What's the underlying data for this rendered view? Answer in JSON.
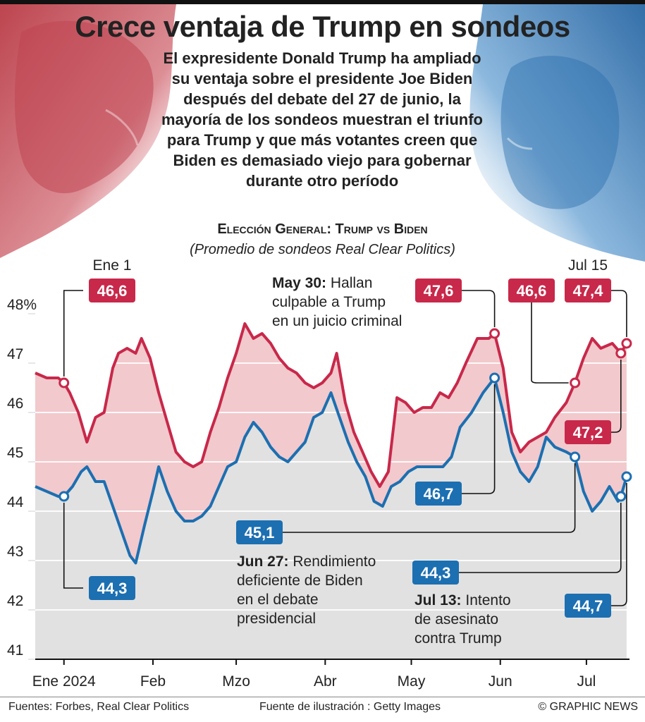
{
  "title": "Crece ventaja de Trump en sondeos",
  "intro": "El expresidente Donald Trump ha ampliado su ventaja sobre el presidente Joe Biden después del debate del 27 de junio, la mayoría de los sondeos muestran el triunfo para Trump y que más votantes creen que Biden es demasiado viejo para gobernar durante otro período",
  "subhead": "Elección General: Trump vs Biden",
  "subnote": "(Promedio de sondeos Real Clear Politics)",
  "colors": {
    "trump": "#c8284a",
    "biden": "#1c6fb1",
    "gap_fill": "#f2c9cc",
    "under_fill": "#e1e1e1"
  },
  "chart_data": {
    "type": "line",
    "ylim": [
      41,
      48
    ],
    "y_ticks": [
      {
        "value": 48,
        "label": "48%"
      },
      {
        "value": 47,
        "label": "47"
      },
      {
        "value": 46,
        "label": "46"
      },
      {
        "value": 45,
        "label": "45"
      },
      {
        "value": 44,
        "label": "44"
      },
      {
        "value": 43,
        "label": "43"
      },
      {
        "value": 42,
        "label": "42"
      },
      {
        "value": 41,
        "label": "41"
      }
    ],
    "x_range": [
      "2023-12-22",
      "2024-07-16"
    ],
    "x_ticks": [
      {
        "date": "2024-01-01",
        "label": "Ene 2024"
      },
      {
        "date": "2024-02-01",
        "label": "Feb"
      },
      {
        "date": "2024-03-01",
        "label": "Mzo"
      },
      {
        "date": "2024-04-01",
        "label": "Abr"
      },
      {
        "date": "2024-05-01",
        "label": "May"
      },
      {
        "date": "2024-06-01",
        "label": "Jun"
      },
      {
        "date": "2024-07-01",
        "label": "Jul"
      }
    ],
    "series": [
      {
        "key": "trump",
        "points": [
          [
            "2023-12-22",
            46.8
          ],
          [
            "2023-12-26",
            46.7
          ],
          [
            "2023-12-30",
            46.7
          ],
          [
            "2024-01-01",
            46.6
          ],
          [
            "2024-01-03",
            46.4
          ],
          [
            "2024-01-06",
            46.0
          ],
          [
            "2024-01-09",
            45.4
          ],
          [
            "2024-01-12",
            45.9
          ],
          [
            "2024-01-15",
            46.0
          ],
          [
            "2024-01-18",
            46.9
          ],
          [
            "2024-01-20",
            47.2
          ],
          [
            "2024-01-23",
            47.3
          ],
          [
            "2024-01-26",
            47.2
          ],
          [
            "2024-01-28",
            47.5
          ],
          [
            "2024-01-31",
            47.1
          ],
          [
            "2024-02-03",
            46.4
          ],
          [
            "2024-02-06",
            45.8
          ],
          [
            "2024-02-09",
            45.2
          ],
          [
            "2024-02-12",
            45.0
          ],
          [
            "2024-02-15",
            44.9
          ],
          [
            "2024-02-18",
            45.0
          ],
          [
            "2024-02-21",
            45.6
          ],
          [
            "2024-02-24",
            46.1
          ],
          [
            "2024-02-27",
            46.7
          ],
          [
            "2024-03-01",
            47.2
          ],
          [
            "2024-03-04",
            47.8
          ],
          [
            "2024-03-07",
            47.5
          ],
          [
            "2024-03-10",
            47.6
          ],
          [
            "2024-03-13",
            47.4
          ],
          [
            "2024-03-16",
            47.1
          ],
          [
            "2024-03-19",
            46.9
          ],
          [
            "2024-03-22",
            46.8
          ],
          [
            "2024-03-25",
            46.6
          ],
          [
            "2024-03-28",
            46.5
          ],
          [
            "2024-03-31",
            46.6
          ],
          [
            "2024-04-03",
            46.8
          ],
          [
            "2024-04-05",
            47.2
          ],
          [
            "2024-04-08",
            46.2
          ],
          [
            "2024-04-11",
            45.6
          ],
          [
            "2024-04-14",
            45.2
          ],
          [
            "2024-04-17",
            44.8
          ],
          [
            "2024-04-20",
            44.5
          ],
          [
            "2024-04-23",
            44.8
          ],
          [
            "2024-04-26",
            46.3
          ],
          [
            "2024-04-29",
            46.2
          ],
          [
            "2024-05-02",
            46.0
          ],
          [
            "2024-05-05",
            46.1
          ],
          [
            "2024-05-08",
            46.1
          ],
          [
            "2024-05-11",
            46.4
          ],
          [
            "2024-05-14",
            46.3
          ],
          [
            "2024-05-17",
            46.6
          ],
          [
            "2024-05-20",
            47.0
          ],
          [
            "2024-05-24",
            47.5
          ],
          [
            "2024-05-28",
            47.5
          ],
          [
            "2024-05-30",
            47.6
          ],
          [
            "2024-06-02",
            46.9
          ],
          [
            "2024-06-05",
            45.6
          ],
          [
            "2024-06-08",
            45.2
          ],
          [
            "2024-06-11",
            45.4
          ],
          [
            "2024-06-14",
            45.5
          ],
          [
            "2024-06-17",
            45.6
          ],
          [
            "2024-06-20",
            45.9
          ],
          [
            "2024-06-24",
            46.2
          ],
          [
            "2024-06-27",
            46.6
          ],
          [
            "2024-06-30",
            47.1
          ],
          [
            "2024-07-03",
            47.5
          ],
          [
            "2024-07-06",
            47.3
          ],
          [
            "2024-07-10",
            47.4
          ],
          [
            "2024-07-13",
            47.2
          ],
          [
            "2024-07-15",
            47.4
          ]
        ]
      },
      {
        "key": "biden",
        "points": [
          [
            "2023-12-22",
            44.5
          ],
          [
            "2023-12-26",
            44.4
          ],
          [
            "2023-12-30",
            44.3
          ],
          [
            "2024-01-01",
            44.3
          ],
          [
            "2024-01-04",
            44.5
          ],
          [
            "2024-01-07",
            44.8
          ],
          [
            "2024-01-09",
            44.9
          ],
          [
            "2024-01-12",
            44.6
          ],
          [
            "2024-01-15",
            44.6
          ],
          [
            "2024-01-18",
            44.1
          ],
          [
            "2024-01-21",
            43.6
          ],
          [
            "2024-01-24",
            43.1
          ],
          [
            "2024-01-26",
            42.95
          ],
          [
            "2024-01-29",
            43.7
          ],
          [
            "2024-02-01",
            44.4
          ],
          [
            "2024-02-03",
            44.9
          ],
          [
            "2024-02-06",
            44.4
          ],
          [
            "2024-02-09",
            44.0
          ],
          [
            "2024-02-12",
            43.8
          ],
          [
            "2024-02-15",
            43.8
          ],
          [
            "2024-02-18",
            43.9
          ],
          [
            "2024-02-21",
            44.1
          ],
          [
            "2024-02-24",
            44.5
          ],
          [
            "2024-02-27",
            44.9
          ],
          [
            "2024-03-01",
            45.0
          ],
          [
            "2024-03-04",
            45.5
          ],
          [
            "2024-03-07",
            45.8
          ],
          [
            "2024-03-10",
            45.6
          ],
          [
            "2024-03-13",
            45.3
          ],
          [
            "2024-03-16",
            45.1
          ],
          [
            "2024-03-19",
            45.0
          ],
          [
            "2024-03-22",
            45.2
          ],
          [
            "2024-03-25",
            45.4
          ],
          [
            "2024-03-28",
            45.9
          ],
          [
            "2024-03-31",
            46.0
          ],
          [
            "2024-04-03",
            46.4
          ],
          [
            "2024-04-06",
            45.9
          ],
          [
            "2024-04-09",
            45.4
          ],
          [
            "2024-04-12",
            45.0
          ],
          [
            "2024-04-15",
            44.7
          ],
          [
            "2024-04-18",
            44.2
          ],
          [
            "2024-04-21",
            44.1
          ],
          [
            "2024-04-24",
            44.5
          ],
          [
            "2024-04-27",
            44.6
          ],
          [
            "2024-04-30",
            44.8
          ],
          [
            "2024-05-03",
            44.9
          ],
          [
            "2024-05-06",
            44.9
          ],
          [
            "2024-05-09",
            44.9
          ],
          [
            "2024-05-12",
            44.9
          ],
          [
            "2024-05-15",
            45.1
          ],
          [
            "2024-05-18",
            45.7
          ],
          [
            "2024-05-22",
            46.0
          ],
          [
            "2024-05-26",
            46.4
          ],
          [
            "2024-05-30",
            46.7
          ],
          [
            "2024-06-02",
            46.0
          ],
          [
            "2024-06-05",
            45.2
          ],
          [
            "2024-06-08",
            44.8
          ],
          [
            "2024-06-11",
            44.6
          ],
          [
            "2024-06-14",
            44.9
          ],
          [
            "2024-06-17",
            45.5
          ],
          [
            "2024-06-20",
            45.3
          ],
          [
            "2024-06-24",
            45.2
          ],
          [
            "2024-06-27",
            45.1
          ],
          [
            "2024-06-30",
            44.4
          ],
          [
            "2024-07-03",
            44.0
          ],
          [
            "2024-07-06",
            44.2
          ],
          [
            "2024-07-09",
            44.5
          ],
          [
            "2024-07-12",
            44.2
          ],
          [
            "2024-07-13",
            44.3
          ],
          [
            "2024-07-15",
            44.7
          ]
        ]
      }
    ],
    "annotations": [
      {
        "id": "jan1_trump",
        "series": "trump",
        "date": "2024-01-01",
        "value": 46.6,
        "label": "46,6",
        "header": "Ene 1"
      },
      {
        "id": "jan1_biden",
        "series": "biden",
        "date": "2024-01-01",
        "value": 44.3,
        "label": "44,3"
      },
      {
        "id": "may30_trump",
        "series": "trump",
        "date": "2024-05-30",
        "value": 47.6,
        "label": "47,6"
      },
      {
        "id": "may30_biden",
        "series": "biden",
        "date": "2024-05-30",
        "value": 46.7,
        "label": "46,7"
      },
      {
        "id": "jun27_trump",
        "series": "trump",
        "date": "2024-06-27",
        "value": 46.6,
        "label": "46,6"
      },
      {
        "id": "jun27_biden",
        "series": "biden",
        "date": "2024-06-27",
        "value": 45.1,
        "label": "45,1"
      },
      {
        "id": "jul13_trump",
        "series": "trump",
        "date": "2024-07-13",
        "value": 47.2,
        "label": "47,2"
      },
      {
        "id": "jul13_biden",
        "series": "biden",
        "date": "2024-07-13",
        "value": 44.3,
        "label": "44,3"
      },
      {
        "id": "jul15_trump",
        "series": "trump",
        "date": "2024-07-15",
        "value": 47.4,
        "label": "47,4",
        "header": "Jul 15"
      },
      {
        "id": "jul15_biden",
        "series": "biden",
        "date": "2024-07-15",
        "value": 44.7,
        "label": "44,7"
      }
    ],
    "events": [
      {
        "id": "may30",
        "bold": "May 30:",
        "lines": [
          " Hallan",
          "culpable a Trump",
          "en un juicio criminal"
        ]
      },
      {
        "id": "jun27",
        "bold": "Jun 27:",
        "lines": [
          " Rendimiento",
          "deficiente de Biden",
          "en el debate",
          "presidencial"
        ]
      },
      {
        "id": "jul13",
        "bold": "Jul 13:",
        "lines": [
          " Intento",
          "de asesinato",
          "contra Trump"
        ]
      }
    ]
  },
  "footer": {
    "source": "Fuentes: Forbes, Real Clear Politics",
    "credit": "Fuente de ilustración : Getty Images",
    "copyright": "© GRAPHIC NEWS"
  }
}
